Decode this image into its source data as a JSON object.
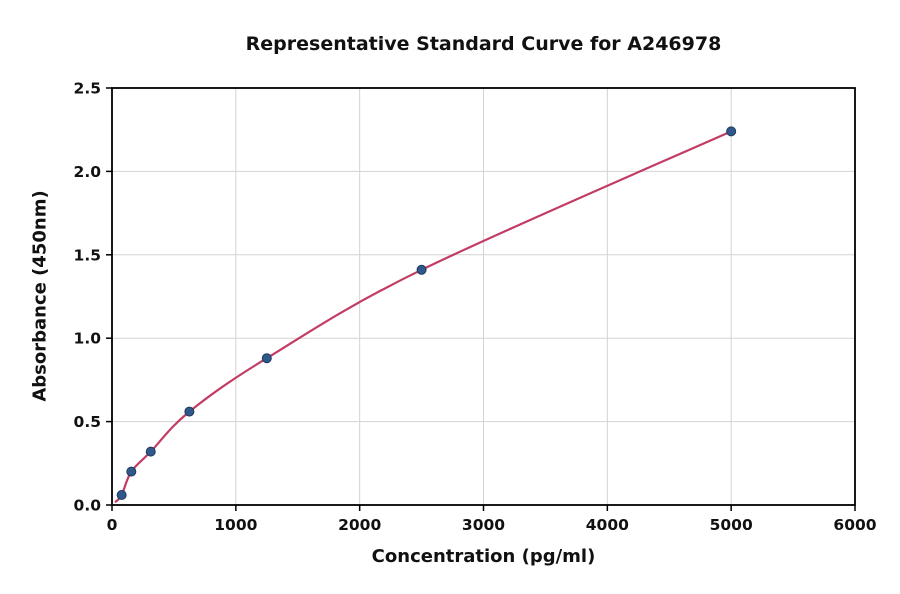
{
  "page": {
    "background": "#ffffff",
    "text_color": "#111111"
  },
  "chart_data": {
    "type": "scatter",
    "title": "Representative Standard Curve for A246978",
    "xlabel": "Concentration (pg/ml)",
    "ylabel": "Absorbance (450nm)",
    "xlim": [
      0,
      6000
    ],
    "ylim": [
      0,
      2.5
    ],
    "grid": true,
    "grid_color": "#d3d3d3",
    "spine_color": "#000000",
    "legend": "none",
    "x_ticks": [
      {
        "v": 0,
        "label": "0"
      },
      {
        "v": 1000,
        "label": "1000"
      },
      {
        "v": 2000,
        "label": "2000"
      },
      {
        "v": 3000,
        "label": "3000"
      },
      {
        "v": 4000,
        "label": "4000"
      },
      {
        "v": 5000,
        "label": "5000"
      },
      {
        "v": 6000,
        "label": "6000"
      }
    ],
    "y_ticks": [
      {
        "v": 0.0,
        "label": "0.0"
      },
      {
        "v": 0.5,
        "label": "0.5"
      },
      {
        "v": 1.0,
        "label": "1.0"
      },
      {
        "v": 1.5,
        "label": "1.5"
      },
      {
        "v": 2.0,
        "label": "2.0"
      },
      {
        "v": 2.5,
        "label": "2.5"
      }
    ],
    "series": [
      {
        "name": "standard-points",
        "type": "scatter",
        "color": "#30588a",
        "edge_color": "#1d3a5f",
        "points": [
          {
            "x": 78,
            "y": 0.06
          },
          {
            "x": 156,
            "y": 0.2
          },
          {
            "x": 313,
            "y": 0.32
          },
          {
            "x": 625,
            "y": 0.56
          },
          {
            "x": 1250,
            "y": 0.88
          },
          {
            "x": 2500,
            "y": 1.41
          },
          {
            "x": 5000,
            "y": 2.24
          }
        ]
      },
      {
        "name": "fitted-curve",
        "type": "line",
        "color": "#c23c63",
        "curve_start": {
          "x": 30,
          "y": 0.02
        }
      }
    ]
  }
}
